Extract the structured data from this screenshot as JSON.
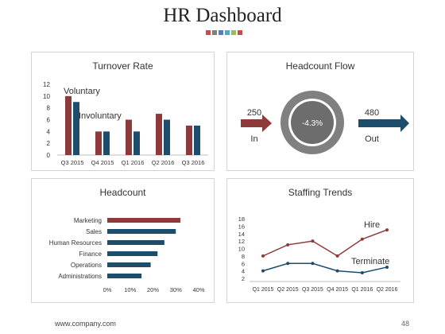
{
  "header": {
    "title": "HR Dashboard"
  },
  "colors": {
    "red": "#8e3a3a",
    "blue": "#1e4d6b",
    "grey": "#7f7f7f"
  },
  "decor_squares": [
    "#c0504d",
    "#7f7f7f",
    "#4f81bd",
    "#4bacc6",
    "#9bbb59",
    "#c0504d"
  ],
  "footer": {
    "url": "www.company.com",
    "page": "48"
  },
  "turnover": {
    "title": "Turnover Rate",
    "labels": {
      "voluntary": "Voluntary",
      "involuntary": "Involuntary"
    },
    "yticks": [
      "0",
      "2",
      "4",
      "6",
      "8",
      "10",
      "12"
    ]
  },
  "flow": {
    "title": "Headcount Flow",
    "in_value": "250",
    "in_label": "In",
    "center_value": "-4.3%",
    "out_value": "480",
    "out_label": "Out"
  },
  "headcount": {
    "title": "Headcount",
    "xticks": [
      "0%",
      "10%",
      "20%",
      "30%",
      "40%"
    ]
  },
  "staffing": {
    "title": "Staffing Trends",
    "labels": {
      "hire": "Hire",
      "terminate": "Terminate"
    },
    "yticks": [
      "2",
      "4",
      "6",
      "8",
      "10",
      "12",
      "14",
      "16",
      "18"
    ]
  },
  "chart_data": [
    {
      "type": "bar",
      "title": "Turnover Rate",
      "categories": [
        "Q3 2015",
        "Q4 2015",
        "Q1 2016",
        "Q2 2016",
        "Q3 2016"
      ],
      "series": [
        {
          "name": "Voluntary",
          "values": [
            10,
            4,
            6,
            7,
            5
          ]
        },
        {
          "name": "Involuntary",
          "values": [
            9,
            4,
            4,
            6,
            5
          ]
        }
      ],
      "ylim": [
        0,
        12
      ],
      "grid": false
    },
    {
      "type": "bar",
      "title": "Headcount",
      "orientation": "horizontal",
      "categories": [
        "Marketing",
        "Sales",
        "Human Resources",
        "Finance",
        "Operations",
        "Administrations"
      ],
      "values": [
        0.32,
        0.3,
        0.25,
        0.22,
        0.19,
        0.15
      ],
      "xlim": [
        0,
        0.4
      ],
      "grid": false
    },
    {
      "type": "line",
      "title": "Staffing Trends",
      "x": [
        "Q1 2015",
        "Q2 2015",
        "Q3 2015",
        "Q4 2015",
        "Q1 2016",
        "Q2 2016"
      ],
      "series": [
        {
          "name": "Hire",
          "values": [
            8,
            11,
            12,
            8,
            12.5,
            15
          ]
        },
        {
          "name": "Terminate",
          "values": [
            4,
            6,
            6,
            4,
            3.5,
            5
          ]
        }
      ],
      "ylim": [
        2,
        18
      ],
      "grid": false
    }
  ]
}
